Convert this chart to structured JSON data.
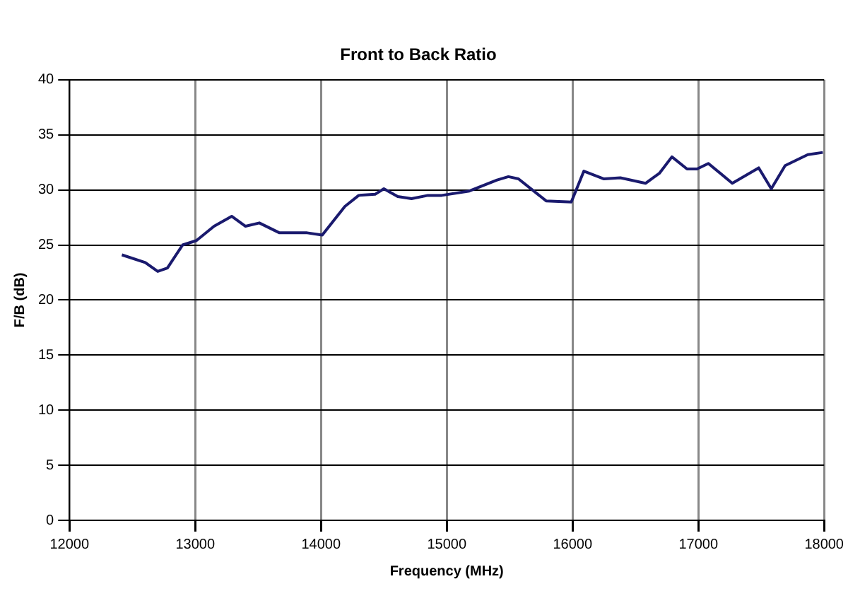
{
  "chart_data": {
    "type": "line",
    "title": "Front to Back Ratio",
    "xlabel": "Frequency (MHz)",
    "ylabel": "F/B (dB)",
    "x": [
      12417,
      12603,
      12702,
      12779,
      12900,
      13010,
      13150,
      13290,
      13400,
      13510,
      13670,
      13890,
      14010,
      14190,
      14300,
      14430,
      14500,
      14610,
      14720,
      14850,
      14960,
      15180,
      15400,
      15490,
      15570,
      15790,
      15990,
      16090,
      16250,
      16380,
      16580,
      16690,
      16790,
      16910,
      16990,
      17080,
      17270,
      17480,
      17580,
      17690,
      17870,
      17990
    ],
    "series": [
      {
        "color": "#1a1a6e",
        "values": [
          24.1,
          23.4,
          22.6,
          22.9,
          25.0,
          25.4,
          26.7,
          27.6,
          26.7,
          27.0,
          26.1,
          26.1,
          25.9,
          28.5,
          29.5,
          29.6,
          30.1,
          29.4,
          29.2,
          29.5,
          29.5,
          29.9,
          30.9,
          31.2,
          31.0,
          29.0,
          28.9,
          31.7,
          31.0,
          31.1,
          30.6,
          31.5,
          33.0,
          31.9,
          31.9,
          32.4,
          30.6,
          32.0,
          30.1,
          32.2,
          33.2,
          33.4
        ]
      }
    ],
    "xlim": [
      12000,
      18000
    ],
    "xticks": [
      12000,
      13000,
      14000,
      15000,
      16000,
      17000,
      18000
    ],
    "ylim": [
      0,
      40
    ],
    "yticks": [
      0,
      5,
      10,
      15,
      20,
      25,
      30,
      35,
      40
    ],
    "grid": true,
    "legend": false,
    "marker": "none",
    "line_style": "solid"
  }
}
